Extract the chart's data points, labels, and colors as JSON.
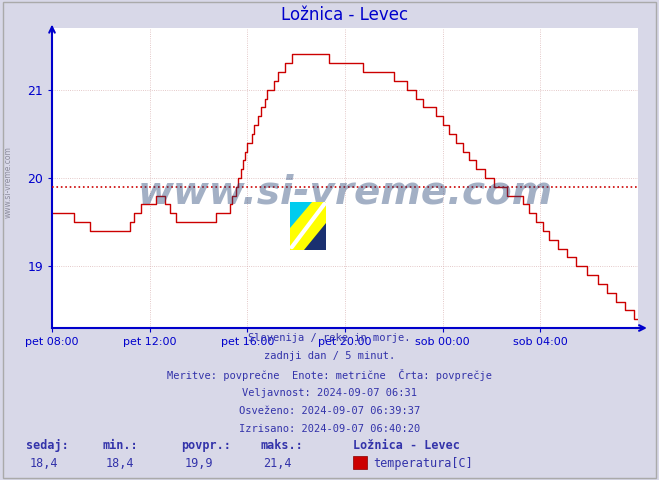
{
  "title": "Ložnica - Levec",
  "title_color": "#0000cc",
  "bg_color": "#d8d8e8",
  "plot_bg_color": "#ffffff",
  "line_color": "#cc0000",
  "avg_line_color": "#cc0000",
  "avg_value": 19.9,
  "x_labels": [
    "pet 08:00",
    "pet 12:00",
    "pet 16:00",
    "pet 20:00",
    "sob 00:00",
    "sob 04:00"
  ],
  "x_ticks_pos": [
    0.0,
    0.1667,
    0.3333,
    0.5,
    0.6667,
    0.8333
  ],
  "y_ticks": [
    19,
    20,
    21
  ],
  "ylim": [
    18.3,
    21.7
  ],
  "xlim": [
    0.0,
    1.0
  ],
  "footer_lines": [
    "Slovenija / reke in morje.",
    "zadnji dan / 5 minut.",
    "Meritve: povprečne  Enote: metrične  Črta: povprečje",
    "Veljavnost: 2024-09-07 06:31",
    "Osveženo: 2024-09-07 06:39:37",
    "Izrisano: 2024-09-07 06:40:20"
  ],
  "footer_color": "#3333aa",
  "stats_labels": [
    "sedaj:",
    "min.:",
    "povpr.:",
    "maks.:"
  ],
  "stats_values": [
    "18,4",
    "18,4",
    "19,9",
    "21,4"
  ],
  "legend_label": "Ložnica - Levec",
  "legend_sublabel": "temperatura[C]",
  "legend_color": "#cc0000",
  "watermark_text": "www.si-vreme.com",
  "watermark_color": "#1a3a6e",
  "watermark_alpha": 0.4,
  "watermark_fontsize": 28,
  "grid_color": "#cc9999",
  "grid_major_color": "#cc9999",
  "axis_color": "#0000cc",
  "sidebar_text": "www.si-vreme.com",
  "sidebar_color": "#7a7a8a",
  "keypoints_t": [
    0.0,
    0.02,
    0.05,
    0.09,
    0.12,
    0.15,
    0.175,
    0.19,
    0.22,
    0.26,
    0.3,
    0.34,
    0.37,
    0.4,
    0.42,
    0.445,
    0.47,
    0.5,
    0.53,
    0.56,
    0.6,
    0.63,
    0.65,
    0.68,
    0.72,
    0.76,
    0.8,
    0.84,
    0.87,
    0.9,
    0.93,
    0.96,
    1.0
  ],
  "keypoints_v": [
    19.65,
    19.6,
    19.5,
    19.35,
    19.35,
    19.65,
    19.75,
    19.75,
    19.45,
    19.5,
    19.6,
    20.5,
    21.0,
    21.3,
    21.45,
    21.4,
    21.35,
    21.3,
    21.25,
    21.2,
    21.1,
    20.85,
    20.8,
    20.5,
    20.15,
    19.9,
    19.75,
    19.4,
    19.2,
    19.0,
    18.85,
    18.65,
    18.4
  ]
}
